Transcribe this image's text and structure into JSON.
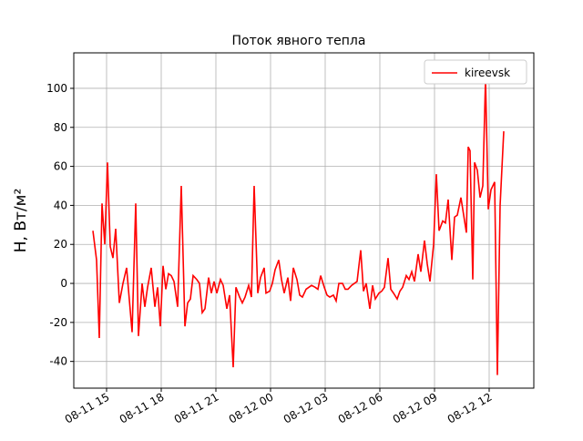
{
  "chart_data": {
    "type": "line",
    "title": "Поток явного тепла",
    "y_label": "H, Вт/м²",
    "x": [
      "08-11 14:15",
      "08-11 14:27",
      "08-11 14:36",
      "08-11 14:45",
      "08-11 14:54",
      "08-11 15:03",
      "08-11 15:12",
      "08-11 15:21",
      "08-11 15:30",
      "08-11 15:42",
      "08-11 15:54",
      "08-11 16:06",
      "08-11 16:24",
      "08-11 16:36",
      "08-11 16:45",
      "08-11 16:57",
      "08-11 17:06",
      "08-11 17:15",
      "08-11 17:27",
      "08-11 17:39",
      "08-11 17:48",
      "08-11 17:57",
      "08-11 18:06",
      "08-11 18:15",
      "08-11 18:24",
      "08-11 18:33",
      "08-11 18:42",
      "08-11 18:54",
      "08-11 19:06",
      "08-11 19:18",
      "08-11 19:27",
      "08-11 19:36",
      "08-11 19:45",
      "08-11 19:57",
      "08-11 20:06",
      "08-11 20:15",
      "08-11 20:24",
      "08-11 20:36",
      "08-11 20:45",
      "08-11 20:54",
      "08-11 21:03",
      "08-11 21:15",
      "08-11 21:24",
      "08-11 21:36",
      "08-11 21:45",
      "08-11 21:57",
      "08-11 22:06",
      "08-11 22:18",
      "08-11 22:27",
      "08-11 22:36",
      "08-11 22:48",
      "08-11 22:57",
      "08-11 23:06",
      "08-11 23:18",
      "08-11 23:27",
      "08-11 23:39",
      "08-11 23:45",
      "08-11 23:57",
      "08-12 00:06",
      "08-12 00:15",
      "08-12 00:27",
      "08-12 00:36",
      "08-12 00:45",
      "08-12 00:57",
      "08-12 01:06",
      "08-12 01:15",
      "08-12 01:27",
      "08-12 01:36",
      "08-12 01:45",
      "08-12 01:57",
      "08-12 02:06",
      "08-12 02:15",
      "08-12 02:27",
      "08-12 02:36",
      "08-12 02:45",
      "08-12 02:57",
      "08-12 03:06",
      "08-12 03:15",
      "08-12 03:27",
      "08-12 03:36",
      "08-12 03:45",
      "08-12 03:57",
      "08-12 04:06",
      "08-12 04:15",
      "08-12 04:27",
      "08-12 04:36",
      "08-12 04:45",
      "08-12 04:57",
      "08-12 05:06",
      "08-12 05:15",
      "08-12 05:27",
      "08-12 05:36",
      "08-12 05:45",
      "08-12 05:57",
      "08-12 06:06",
      "08-12 06:15",
      "08-12 06:27",
      "08-12 06:36",
      "08-12 06:45",
      "08-12 06:57",
      "08-12 07:06",
      "08-12 07:15",
      "08-12 07:27",
      "08-12 07:36",
      "08-12 07:45",
      "08-12 07:54",
      "08-12 08:06",
      "08-12 08:15",
      "08-12 08:27",
      "08-12 08:36",
      "08-12 08:45",
      "08-12 08:57",
      "08-12 09:06",
      "08-12 09:15",
      "08-12 09:27",
      "08-12 09:36",
      "08-12 09:45",
      "08-12 09:57",
      "08-12 10:06",
      "08-12 10:15",
      "08-12 10:27",
      "08-12 10:36",
      "08-12 10:45",
      "08-12 10:51",
      "08-12 10:57",
      "08-12 11:06",
      "08-12 11:12",
      "08-12 11:21",
      "08-12 11:30",
      "08-12 11:39",
      "08-12 11:48",
      "08-12 11:57",
      "08-12 12:06",
      "08-12 12:18",
      "08-12 12:27",
      "08-12 12:36",
      "08-12 12:48"
    ],
    "series": [
      {
        "name": "kireevsk",
        "color": "#ff0000",
        "values": [
          27,
          12,
          -28,
          41,
          20,
          62,
          19,
          13,
          28,
          -10,
          0,
          8,
          -25,
          41,
          -27,
          0,
          -12,
          -2,
          8,
          -12,
          -2,
          -22,
          9,
          -3,
          5,
          4,
          1,
          -12,
          50,
          -22,
          -10,
          -8,
          4,
          2,
          0,
          -15,
          -13,
          3,
          -5,
          1,
          -5,
          2,
          -1,
          -13,
          -6,
          -43,
          -2,
          -7,
          -10,
          -7,
          -1,
          -7,
          50,
          -5,
          3,
          8,
          -5,
          -4,
          0,
          7,
          12,
          2,
          -5,
          3,
          -9,
          8,
          2,
          -6,
          -7,
          -3,
          -2,
          -1,
          -2,
          -3,
          4,
          -2,
          -6,
          -7,
          -6,
          -9,
          0,
          0,
          -3,
          -3,
          -1,
          0,
          1,
          17,
          -4,
          0,
          -13,
          -1,
          -8,
          -5,
          -4,
          -2,
          13,
          -3,
          -5,
          -8,
          -4,
          -2,
          4,
          2,
          6,
          1,
          15,
          6,
          22,
          10,
          1,
          20,
          56,
          27,
          32,
          31,
          43,
          12,
          34,
          35,
          44,
          35,
          26,
          70,
          68,
          2,
          62,
          58,
          44,
          50,
          105,
          38,
          48,
          52,
          -47,
          40,
          78
        ]
      }
    ],
    "xlim": [
      "08-11 13:12",
      "08-12 14:27"
    ],
    "xticks": [
      "08-11 15",
      "08-11 18",
      "08-11 21",
      "08-12 00",
      "08-12 03",
      "08-12 06",
      "08-12 09",
      "08-12 12"
    ],
    "ylim": [
      -53.7,
      118.2
    ],
    "yticks": [
      -40,
      -20,
      0,
      20,
      40,
      60,
      80,
      100
    ],
    "grid": true,
    "legend": "upper right"
  }
}
